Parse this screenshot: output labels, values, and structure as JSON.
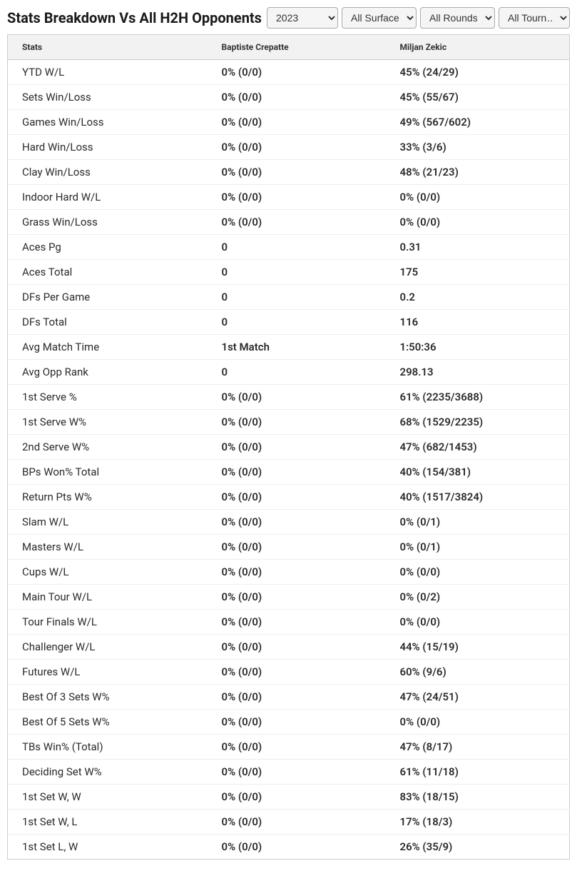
{
  "header": {
    "title": "Stats Breakdown Vs All H2H Opponents"
  },
  "filters": {
    "year": {
      "selected": "2023",
      "options": [
        "2023"
      ]
    },
    "surface": {
      "selected": "All Surfaces",
      "options": [
        "All Surfaces"
      ]
    },
    "round": {
      "selected": "All Rounds",
      "options": [
        "All Rounds"
      ]
    },
    "tournament": {
      "selected": "All Tourn…",
      "options": [
        "All Tourn…"
      ]
    }
  },
  "table": {
    "columns": [
      "Stats",
      "Baptiste Crepatte",
      "Miljan Zekic"
    ],
    "rows": [
      {
        "stat": "YTD W/L",
        "p1": "0% (0/0)",
        "p2": "45% (24/29)"
      },
      {
        "stat": "Sets Win/Loss",
        "p1": "0% (0/0)",
        "p2": "45% (55/67)"
      },
      {
        "stat": "Games Win/Loss",
        "p1": "0% (0/0)",
        "p2": "49% (567/602)"
      },
      {
        "stat": "Hard Win/Loss",
        "p1": "0% (0/0)",
        "p2": "33% (3/6)"
      },
      {
        "stat": "Clay Win/Loss",
        "p1": "0% (0/0)",
        "p2": "48% (21/23)"
      },
      {
        "stat": "Indoor Hard W/L",
        "p1": "0% (0/0)",
        "p2": "0% (0/0)"
      },
      {
        "stat": "Grass Win/Loss",
        "p1": "0% (0/0)",
        "p2": "0% (0/0)"
      },
      {
        "stat": "Aces Pg",
        "p1": "0",
        "p2": "0.31"
      },
      {
        "stat": "Aces Total",
        "p1": "0",
        "p2": "175"
      },
      {
        "stat": "DFs Per Game",
        "p1": "0",
        "p2": "0.2"
      },
      {
        "stat": "DFs Total",
        "p1": "0",
        "p2": "116"
      },
      {
        "stat": "Avg Match Time",
        "p1": "1st Match",
        "p2": "1:50:36"
      },
      {
        "stat": "Avg Opp Rank",
        "p1": "0",
        "p2": "298.13"
      },
      {
        "stat": "1st Serve %",
        "p1": "0% (0/0)",
        "p2": "61% (2235/3688)"
      },
      {
        "stat": "1st Serve W%",
        "p1": "0% (0/0)",
        "p2": "68% (1529/2235)"
      },
      {
        "stat": "2nd Serve W%",
        "p1": "0% (0/0)",
        "p2": "47% (682/1453)"
      },
      {
        "stat": "BPs Won% Total",
        "p1": "0% (0/0)",
        "p2": "40% (154/381)"
      },
      {
        "stat": "Return Pts W%",
        "p1": "0% (0/0)",
        "p2": "40% (1517/3824)"
      },
      {
        "stat": "Slam W/L",
        "p1": "0% (0/0)",
        "p2": "0% (0/1)"
      },
      {
        "stat": "Masters W/L",
        "p1": "0% (0/0)",
        "p2": "0% (0/1)"
      },
      {
        "stat": "Cups W/L",
        "p1": "0% (0/0)",
        "p2": "0% (0/0)"
      },
      {
        "stat": "Main Tour W/L",
        "p1": "0% (0/0)",
        "p2": "0% (0/2)"
      },
      {
        "stat": "Tour Finals W/L",
        "p1": "0% (0/0)",
        "p2": "0% (0/0)"
      },
      {
        "stat": "Challenger W/L",
        "p1": "0% (0/0)",
        "p2": "44% (15/19)"
      },
      {
        "stat": "Futures W/L",
        "p1": "0% (0/0)",
        "p2": "60% (9/6)"
      },
      {
        "stat": "Best Of 3 Sets W%",
        "p1": "0% (0/0)",
        "p2": "47% (24/51)"
      },
      {
        "stat": "Best Of 5 Sets W%",
        "p1": "0% (0/0)",
        "p2": "0% (0/0)"
      },
      {
        "stat": "TBs Win% (Total)",
        "p1": "0% (0/0)",
        "p2": "47% (8/17)"
      },
      {
        "stat": "Deciding Set W%",
        "p1": "0% (0/0)",
        "p2": "61% (11/18)"
      },
      {
        "stat": "1st Set W, W",
        "p1": "0% (0/0)",
        "p2": "83% (18/15)"
      },
      {
        "stat": "1st Set W, L",
        "p1": "0% (0/0)",
        "p2": "17% (18/3)"
      },
      {
        "stat": "1st Set L, W",
        "p1": "0% (0/0)",
        "p2": "26% (35/9)"
      }
    ]
  },
  "styling": {
    "title_color": "#1a1a1a",
    "title_fontsize": 20,
    "header_bg": "#f2f2f2",
    "header_text_color": "#333333",
    "header_fontsize": 12,
    "cell_text_color": "#2a2a2a",
    "cell_fontsize": 15,
    "border_color": "#cccccc",
    "row_border_color": "#eeeeee",
    "background_color": "#ffffff"
  }
}
